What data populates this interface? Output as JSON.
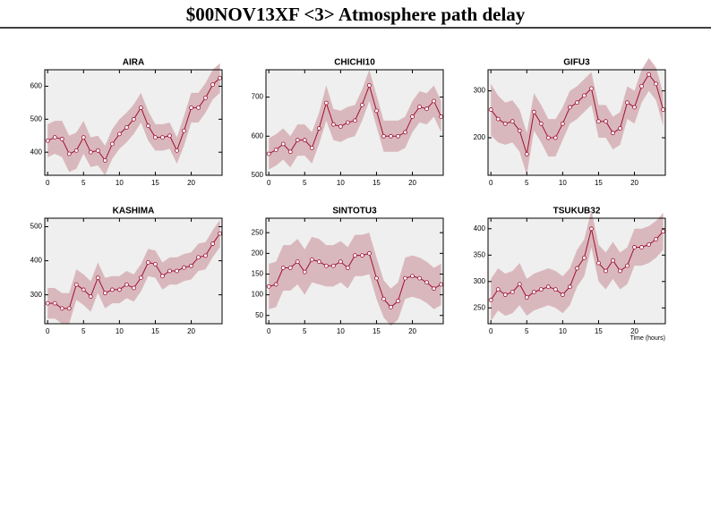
{
  "title": "$00NOV13XF <3>  Atmosphere path delay",
  "chart_data": [
    {
      "type": "line",
      "title": "AIRA",
      "x": [
        0,
        1,
        2,
        3,
        4,
        5,
        6,
        7,
        8,
        9,
        10,
        11,
        12,
        13,
        14,
        15,
        16,
        17,
        18,
        19,
        20,
        21,
        22,
        23,
        24
      ],
      "series": [
        {
          "color": "#a01030",
          "band_color": "#d9b8bd",
          "values": [
            435,
            445,
            440,
            395,
            405,
            445,
            400,
            405,
            375,
            425,
            455,
            475,
            500,
            535,
            480,
            445,
            445,
            450,
            405,
            465,
            535,
            535,
            565,
            605,
            625
          ],
          "errors": [
            50,
            50,
            55,
            55,
            55,
            50,
            45,
            45,
            45,
            45,
            45,
            45,
            45,
            45,
            45,
            40,
            40,
            40,
            40,
            45,
            45,
            45,
            45,
            45,
            45
          ]
        }
      ],
      "xlim": [
        -0.4,
        24.3
      ],
      "xticks": [
        0,
        5,
        10,
        15,
        20
      ],
      "ylim": [
        330,
        650
      ],
      "yticks": [
        400,
        500,
        600
      ]
    },
    {
      "type": "line",
      "title": "CHICHI10",
      "x": [
        0,
        1,
        2,
        3,
        4,
        5,
        6,
        7,
        8,
        9,
        10,
        11,
        12,
        13,
        14,
        15,
        16,
        17,
        18,
        19,
        20,
        21,
        22,
        23,
        24
      ],
      "series": [
        {
          "color": "#a01030",
          "band_color": "#d9b8bd",
          "values": [
            555,
            565,
            580,
            560,
            590,
            590,
            570,
            620,
            685,
            630,
            625,
            635,
            640,
            680,
            730,
            665,
            600,
            600,
            600,
            610,
            650,
            675,
            670,
            690,
            650
          ],
          "errors": [
            40,
            40,
            40,
            40,
            40,
            40,
            40,
            40,
            45,
            40,
            40,
            40,
            40,
            40,
            40,
            40,
            40,
            40,
            40,
            40,
            40,
            40,
            40,
            40,
            40
          ]
        }
      ],
      "xlim": [
        -0.4,
        24.3
      ],
      "xticks": [
        0,
        5,
        10,
        15,
        20
      ],
      "ylim": [
        500,
        770
      ],
      "yticks": [
        500,
        600,
        700
      ]
    },
    {
      "type": "line",
      "title": "GIFU3",
      "x": [
        0,
        1,
        2,
        3,
        4,
        5,
        6,
        7,
        8,
        9,
        10,
        11,
        12,
        13,
        14,
        15,
        16,
        17,
        18,
        19,
        20,
        21,
        22,
        23,
        24
      ],
      "series": [
        {
          "color": "#a01030",
          "band_color": "#d9b8bd",
          "values": [
            260,
            240,
            230,
            235,
            215,
            165,
            255,
            230,
            200,
            200,
            230,
            265,
            275,
            290,
            305,
            235,
            235,
            210,
            220,
            275,
            265,
            310,
            335,
            315,
            260
          ],
          "errors": [
            55,
            50,
            45,
            45,
            45,
            45,
            40,
            40,
            40,
            40,
            35,
            35,
            35,
            35,
            35,
            35,
            35,
            35,
            35,
            35,
            35,
            35,
            35,
            35,
            35
          ]
        }
      ],
      "xlim": [
        -0.4,
        24.3
      ],
      "xticks": [
        0,
        5,
        10,
        15,
        20
      ],
      "ylim": [
        120,
        345
      ],
      "yticks": [
        200,
        300
      ]
    },
    {
      "type": "line",
      "title": "KASHIMA",
      "x": [
        0,
        1,
        2,
        3,
        4,
        5,
        6,
        7,
        8,
        9,
        10,
        11,
        12,
        13,
        14,
        15,
        16,
        17,
        18,
        19,
        20,
        21,
        22,
        23,
        24
      ],
      "series": [
        {
          "color": "#a01030",
          "band_color": "#d9b8bd",
          "values": [
            275,
            275,
            260,
            260,
            330,
            315,
            295,
            350,
            305,
            315,
            315,
            330,
            320,
            350,
            395,
            390,
            355,
            370,
            370,
            380,
            385,
            410,
            415,
            450,
            480
          ],
          "errors": [
            45,
            45,
            45,
            45,
            45,
            45,
            45,
            45,
            45,
            40,
            40,
            40,
            40,
            40,
            40,
            40,
            40,
            40,
            40,
            40,
            40,
            40,
            40,
            40,
            40
          ]
        }
      ],
      "xlim": [
        -0.4,
        24.3
      ],
      "xticks": [
        0,
        5,
        10,
        15,
        20
      ],
      "ylim": [
        215,
        525
      ],
      "yticks": [
        300,
        400,
        500
      ]
    },
    {
      "type": "line",
      "title": "SINTOTU3",
      "x": [
        0,
        1,
        2,
        3,
        4,
        5,
        6,
        7,
        8,
        9,
        10,
        11,
        12,
        13,
        14,
        15,
        16,
        17,
        18,
        19,
        20,
        21,
        22,
        23,
        24
      ],
      "series": [
        {
          "color": "#a01030",
          "band_color": "#d9b8bd",
          "values": [
            120,
            125,
            165,
            165,
            180,
            155,
            185,
            180,
            170,
            170,
            180,
            165,
            195,
            195,
            200,
            140,
            90,
            70,
            85,
            140,
            145,
            140,
            130,
            115,
            125
          ],
          "errors": [
            55,
            55,
            55,
            55,
            55,
            55,
            55,
            55,
            50,
            50,
            50,
            50,
            50,
            50,
            50,
            50,
            45,
            45,
            45,
            50,
            50,
            50,
            50,
            50,
            50
          ]
        }
      ],
      "xlim": [
        -0.4,
        24.3
      ],
      "xticks": [
        0,
        5,
        10,
        15,
        20
      ],
      "ylim": [
        30,
        285
      ],
      "yticks": [
        50,
        100,
        150,
        200,
        250
      ]
    },
    {
      "type": "line",
      "title": "TSUKUB32",
      "xlabel": "Time (hours)",
      "x": [
        0,
        1,
        2,
        3,
        4,
        5,
        6,
        7,
        8,
        9,
        10,
        11,
        12,
        13,
        14,
        15,
        16,
        17,
        18,
        19,
        20,
        21,
        22,
        23,
        24
      ],
      "series": [
        {
          "color": "#a01030",
          "band_color": "#d9b8bd",
          "values": [
            265,
            285,
            275,
            280,
            295,
            270,
            280,
            285,
            290,
            285,
            275,
            290,
            325,
            345,
            400,
            335,
            320,
            340,
            320,
            330,
            365,
            365,
            370,
            380,
            395
          ],
          "errors": [
            40,
            40,
            40,
            40,
            40,
            35,
            35,
            35,
            35,
            35,
            35,
            35,
            35,
            35,
            35,
            35,
            35,
            35,
            35,
            35,
            35,
            35,
            35,
            35,
            35
          ]
        }
      ],
      "xlim": [
        -0.4,
        24.3
      ],
      "xticks": [
        0,
        5,
        10,
        15,
        20
      ],
      "ylim": [
        220,
        420
      ],
      "yticks": [
        250,
        300,
        350,
        400
      ]
    }
  ]
}
